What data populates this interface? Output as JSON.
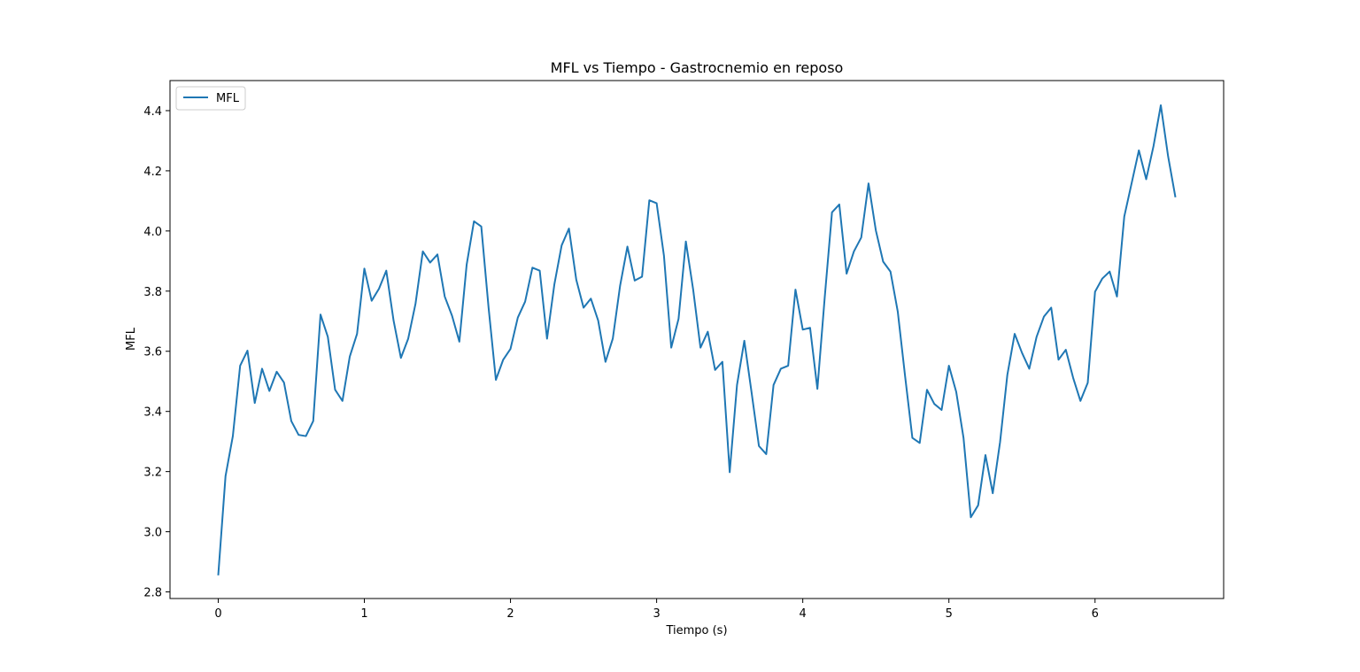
{
  "chart_data": {
    "type": "line",
    "title": "MFL vs Tiempo - Gastrocnemio en reposo",
    "xlabel": "Tiempo (s)",
    "ylabel": "MFL",
    "xlim": [
      -0.33,
      6.88
    ],
    "ylim": [
      2.778,
      4.5
    ],
    "x_ticks": [
      0,
      1,
      2,
      3,
      4,
      5,
      6
    ],
    "x_tick_labels": [
      "0",
      "1",
      "2",
      "3",
      "4",
      "5",
      "6"
    ],
    "y_ticks": [
      2.8,
      3.0,
      3.2,
      3.4,
      3.6,
      3.8,
      4.0,
      4.2,
      4.4
    ],
    "y_tick_labels": [
      "2.8",
      "3.0",
      "3.2",
      "3.4",
      "3.6",
      "3.8",
      "4.0",
      "4.2",
      "4.4"
    ],
    "grid": false,
    "legend": {
      "placement": "upper-left"
    },
    "colors": {
      "series": "#1f77b4"
    },
    "x_start": 0,
    "x_step": 0.05,
    "series": [
      {
        "name": "MFL",
        "values": [
          2.855,
          3.185,
          3.318,
          3.552,
          3.602,
          3.428,
          3.542,
          3.468,
          3.532,
          3.496,
          3.368,
          3.322,
          3.318,
          3.368,
          3.722,
          3.648,
          3.472,
          3.435,
          3.582,
          3.658,
          3.875,
          3.768,
          3.808,
          3.868,
          3.702,
          3.578,
          3.642,
          3.758,
          3.932,
          3.895,
          3.922,
          3.782,
          3.718,
          3.632,
          3.888,
          4.032,
          4.015,
          3.745,
          3.505,
          3.572,
          3.608,
          3.712,
          3.765,
          3.878,
          3.868,
          3.642,
          3.822,
          3.952,
          4.008,
          3.838,
          3.745,
          3.775,
          3.702,
          3.565,
          3.642,
          3.818,
          3.948,
          3.835,
          3.848,
          4.102,
          4.092,
          3.918,
          3.612,
          3.708,
          3.965,
          3.805,
          3.612,
          3.665,
          3.538,
          3.565,
          3.198,
          3.488,
          3.635,
          3.462,
          3.285,
          3.258,
          3.488,
          3.542,
          3.552,
          3.805,
          3.672,
          3.678,
          3.475,
          3.778,
          4.062,
          4.088,
          3.858,
          3.932,
          3.978,
          4.158,
          4.002,
          3.898,
          3.865,
          3.732,
          3.518,
          3.312,
          3.295,
          3.472,
          3.425,
          3.405,
          3.552,
          3.465,
          3.312,
          3.048,
          3.088,
          3.255,
          3.128,
          3.298,
          3.522,
          3.658,
          3.595,
          3.542,
          3.648,
          3.715,
          3.745,
          3.572,
          3.605,
          3.512,
          3.435,
          3.495,
          3.798,
          3.842,
          3.865,
          3.782,
          4.048,
          4.158,
          4.268,
          4.172,
          4.282,
          4.418,
          4.248,
          4.112
        ]
      }
    ]
  }
}
